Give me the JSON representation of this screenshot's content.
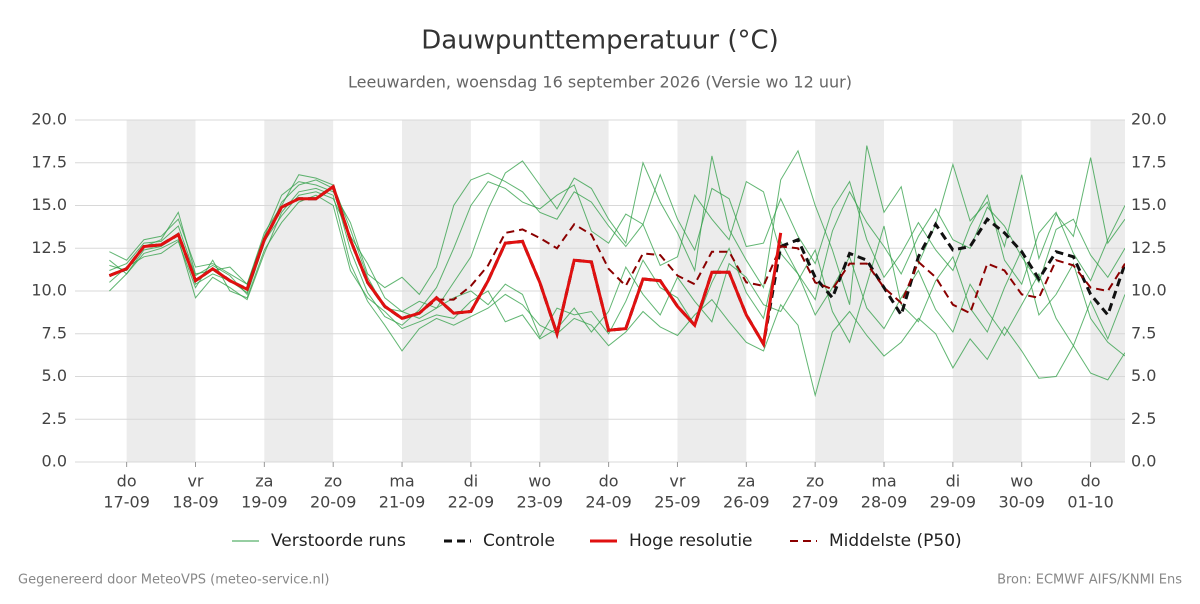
{
  "chart_data": {
    "type": "line",
    "title": "Dauwpunttemperatuur (°C)",
    "subtitle": "Leeuwarden, woensdag 16 september 2026 (Versie wo 12 uur)",
    "x": [
      -0.25,
      0,
      0.25,
      0.5,
      0.75,
      1,
      1.25,
      1.5,
      1.75,
      2,
      2.25,
      2.5,
      2.75,
      3,
      3.25,
      3.5,
      3.75,
      4,
      4.25,
      4.5,
      4.75,
      5,
      5.25,
      5.5,
      5.75,
      6,
      6.25,
      6.5,
      6.75,
      7,
      7.25,
      7.5,
      7.75,
      8,
      8.25,
      8.5,
      8.75,
      9,
      9.25,
      9.5,
      9.75,
      10,
      10.25,
      10.5,
      10.75,
      11,
      11.25,
      11.5,
      11.75,
      12,
      12.25,
      12.5,
      12.75,
      13,
      13.25,
      13.5,
      13.75,
      14,
      14.25,
      14.5
    ],
    "xlim": [
      -0.75,
      14.5
    ],
    "xticks": [
      {
        "value": 0,
        "label": "do",
        "date": "17-09"
      },
      {
        "value": 1,
        "label": "vr",
        "date": "18-09"
      },
      {
        "value": 2,
        "label": "za",
        "date": "19-09"
      },
      {
        "value": 3,
        "label": "zo",
        "date": "20-09"
      },
      {
        "value": 4,
        "label": "ma",
        "date": "21-09"
      },
      {
        "value": 5,
        "label": "di",
        "date": "22-09"
      },
      {
        "value": 6,
        "label": "wo",
        "date": "23-09"
      },
      {
        "value": 7,
        "label": "do",
        "date": "24-09"
      },
      {
        "value": 8,
        "label": "vr",
        "date": "25-09"
      },
      {
        "value": 9,
        "label": "za",
        "date": "26-09"
      },
      {
        "value": 10,
        "label": "zo",
        "date": "27-09"
      },
      {
        "value": 11,
        "label": "ma",
        "date": "28-09"
      },
      {
        "value": 12,
        "label": "di",
        "date": "29-09"
      },
      {
        "value": 13,
        "label": "wo",
        "date": "30-09"
      },
      {
        "value": 14,
        "label": "do",
        "date": "01-10"
      }
    ],
    "shade_alternate_days": true,
    "ylim": [
      0,
      20
    ],
    "yticks": [
      {
        "value": 0,
        "label": "0.0"
      },
      {
        "value": 2.5,
        "label": "2.5"
      },
      {
        "value": 5,
        "label": "5.0"
      },
      {
        "value": 7.5,
        "label": "7.5"
      },
      {
        "value": 10,
        "label": "10.0"
      },
      {
        "value": 12.5,
        "label": "12.5"
      },
      {
        "value": 15,
        "label": "15.0"
      },
      {
        "value": 17.5,
        "label": "17.5"
      },
      {
        "value": 20,
        "label": "20.0"
      }
    ],
    "grid": true,
    "ensemble": {
      "name": "Verstoorde runs",
      "color": "#2e9e44",
      "members": [
        [
          11.2,
          11.6,
          12.8,
          12.9,
          13.8,
          10.9,
          11.5,
          10.9,
          9.8,
          12.8,
          15.2,
          16.2,
          16.5,
          16.0,
          12.4,
          9.9,
          8.5,
          8.0,
          8.9,
          10.2,
          12.5,
          15.0,
          16.4,
          16.0,
          15.2,
          14.8,
          15.6,
          16.2,
          13.5,
          12.8,
          14.5,
          13.9,
          11.5,
          12.0,
          15.6,
          14.2,
          13.0,
          16.4,
          15.8,
          12.2,
          11.0,
          9.5,
          13.5,
          15.8,
          14.0,
          12.6,
          11.0,
          13.2,
          14.8,
          13.0,
          12.5,
          14.9,
          13.8,
          12.0,
          10.5,
          13.6,
          14.2,
          12.1,
          10.8,
          12.5
        ],
        [
          10.0,
          11.0,
          12.2,
          12.5,
          13.0,
          9.6,
          10.8,
          10.2,
          9.5,
          12.2,
          14.6,
          15.8,
          16.0,
          15.6,
          11.6,
          9.4,
          8.0,
          6.5,
          7.8,
          8.4,
          8.0,
          8.5,
          9.0,
          9.8,
          9.2,
          8.0,
          7.5,
          8.4,
          8.0,
          6.8,
          7.6,
          8.8,
          7.9,
          7.4,
          8.6,
          9.5,
          8.2,
          7.0,
          6.5,
          9.2,
          8.0,
          3.9,
          7.6,
          8.8,
          7.4,
          6.2,
          7.0,
          8.4,
          7.5,
          5.5,
          7.2,
          6.0,
          7.9,
          6.5,
          4.9,
          5.0,
          6.8,
          5.2,
          4.8,
          6.4
        ],
        [
          11.5,
          11.2,
          12.6,
          13.0,
          14.6,
          11.0,
          11.2,
          11.4,
          10.4,
          13.4,
          15.0,
          16.8,
          16.6,
          16.2,
          13.6,
          10.8,
          9.0,
          8.8,
          8.4,
          9.0,
          10.5,
          12.0,
          14.8,
          16.9,
          17.6,
          16.2,
          14.8,
          16.6,
          16.0,
          14.2,
          12.8,
          17.5,
          15.2,
          13.4,
          11.2,
          17.9,
          13.6,
          11.8,
          10.2,
          16.5,
          18.2,
          15.0,
          12.4,
          9.2,
          18.5,
          14.6,
          16.1,
          11.6,
          13.9,
          17.4,
          14.1,
          15.2,
          12.6,
          16.8,
          11.9,
          14.5,
          13.2,
          17.8,
          12.8,
          14.2
        ],
        [
          11.8,
          11.0,
          12.4,
          12.6,
          13.4,
          10.4,
          11.0,
          10.6,
          9.9,
          12.9,
          14.4,
          15.6,
          15.8,
          15.4,
          13.2,
          11.6,
          9.6,
          8.8,
          9.4,
          9.0,
          9.6,
          10.0,
          9.2,
          10.4,
          9.8,
          7.3,
          9.0,
          8.6,
          8.8,
          7.5,
          9.4,
          11.8,
          10.2,
          9.6,
          8.0,
          10.5,
          12.5,
          9.9,
          8.4,
          12.9,
          11.0,
          8.6,
          10.2,
          12.0,
          9.0,
          7.8,
          9.6,
          11.2,
          8.9,
          7.6,
          10.4,
          8.8,
          7.4,
          9.2,
          11.0,
          8.4,
          6.8,
          9.4,
          7.2,
          9.8
        ],
        [
          12.3,
          11.8,
          13.0,
          13.2,
          14.2,
          11.4,
          11.6,
          11.0,
          10.4,
          13.2,
          15.6,
          16.4,
          16.2,
          15.8,
          14.0,
          11.0,
          10.2,
          10.8,
          9.8,
          11.4,
          15.0,
          16.5,
          16.9,
          16.4,
          15.8,
          14.6,
          14.2,
          15.8,
          15.2,
          13.8,
          12.6,
          13.9,
          16.8,
          14.2,
          12.4,
          16.0,
          15.4,
          12.6,
          12.8,
          15.4,
          13.2,
          11.6,
          14.8,
          16.4,
          13.0,
          10.8,
          12.2,
          14.0,
          12.4,
          11.2,
          13.8,
          15.6,
          11.8,
          10.4,
          13.4,
          14.6,
          12.2,
          10.6,
          13.0,
          15.0
        ],
        [
          10.5,
          11.4,
          12.0,
          12.2,
          12.9,
          10.2,
          11.8,
          10.0,
          9.6,
          12.4,
          14.0,
          15.2,
          15.6,
          15.0,
          11.2,
          9.6,
          8.8,
          7.8,
          8.2,
          8.6,
          8.4,
          9.4,
          10.0,
          8.2,
          8.6,
          7.2,
          7.8,
          9.0,
          7.6,
          8.8,
          11.4,
          9.8,
          8.6,
          10.8,
          9.4,
          8.2,
          11.6,
          10.8,
          9.2,
          8.8,
          10.6,
          12.4,
          8.8,
          7.0,
          10.4,
          13.8,
          9.2,
          8.2,
          10.6,
          12.0,
          9.0,
          7.6,
          10.2,
          12.4,
          8.6,
          9.8,
          11.6,
          8.4,
          7.0,
          6.2
        ]
      ]
    },
    "series": [
      {
        "name": "Controle",
        "color": "#111111",
        "dash": true,
        "width": 3,
        "values": [
          10.9,
          11.3,
          12.6,
          12.7,
          13.3,
          10.6,
          11.3,
          10.6,
          10.1,
          13.0,
          14.9,
          15.4,
          15.4,
          16.1,
          13.0,
          10.5,
          9.1,
          8.4,
          8.7,
          9.6,
          8.7,
          8.8,
          10.6,
          12.8,
          12.9,
          10.5,
          7.5,
          11.8,
          11.7,
          7.7,
          7.8,
          10.7,
          10.6,
          9.1,
          8.0,
          11.1,
          11.1,
          8.6,
          6.9,
          12.6,
          13.0,
          10.8,
          9.6,
          12.2,
          11.8,
          10.2,
          8.6,
          12.0,
          13.9,
          12.4,
          12.6,
          14.2,
          13.4,
          12.3,
          10.7,
          12.3,
          12.0,
          9.8,
          8.6,
          11.6
        ]
      },
      {
        "name": "Hoge resolutie",
        "color": "#e01010",
        "dash": false,
        "width": 3,
        "values": [
          10.9,
          11.3,
          12.6,
          12.7,
          13.3,
          10.6,
          11.3,
          10.6,
          10.1,
          13.0,
          14.9,
          15.4,
          15.4,
          16.1,
          13.0,
          10.5,
          9.1,
          8.4,
          8.7,
          9.6,
          8.7,
          8.8,
          10.6,
          12.8,
          12.9,
          10.5,
          7.5,
          11.8,
          11.7,
          7.7,
          7.8,
          10.7,
          10.6,
          9.1,
          8.0,
          11.1,
          11.1,
          8.6,
          6.9,
          13.4,
          null,
          null,
          null,
          null,
          null,
          null,
          null,
          null,
          null,
          null,
          null,
          null,
          null,
          null,
          null,
          null,
          null,
          null,
          null,
          null
        ]
      },
      {
        "name": "Middelste (P50)",
        "color": "#8b0000",
        "dash": true,
        "width": 2,
        "values": [
          10.9,
          11.3,
          12.6,
          12.7,
          13.3,
          10.6,
          11.3,
          10.6,
          10.1,
          13.0,
          14.9,
          15.4,
          15.4,
          16.1,
          13.0,
          10.5,
          9.1,
          8.4,
          8.7,
          9.5,
          9.5,
          10.3,
          11.5,
          13.4,
          13.6,
          13.1,
          12.5,
          13.9,
          13.3,
          11.3,
          10.3,
          12.2,
          12.1,
          10.9,
          10.4,
          12.3,
          12.3,
          10.5,
          10.3,
          12.6,
          12.5,
          10.5,
          10.1,
          11.6,
          11.6,
          10.2,
          9.3,
          11.7,
          10.8,
          9.2,
          8.7,
          11.6,
          11.2,
          9.8,
          9.6,
          11.8,
          11.5,
          10.2,
          10.0,
          11.6
        ]
      }
    ]
  },
  "footer": {
    "left": "Gegenereerd door MeteoVPS (meteo-service.nl)",
    "right": "Bron: ECMWF AIFS/KNMI Ens"
  }
}
